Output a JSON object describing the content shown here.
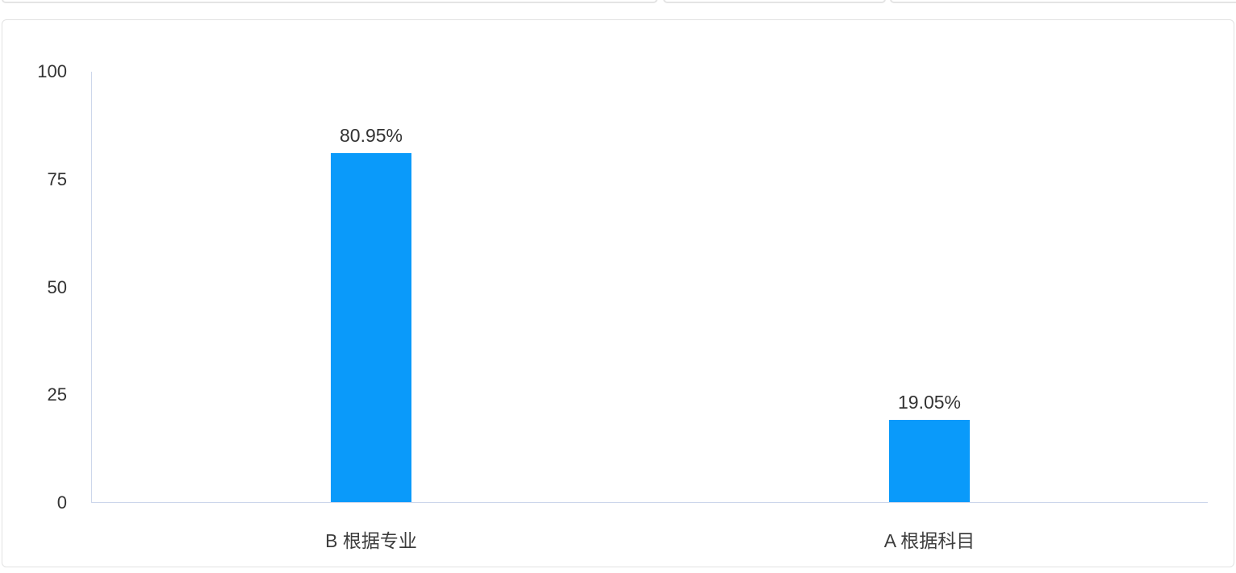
{
  "page": {
    "background": "#ffffff"
  },
  "chart_data": {
    "type": "bar",
    "title": "",
    "xlabel": "",
    "ylabel": "",
    "categories": [
      "B 根据专业",
      "A 根据科目"
    ],
    "values": [
      80.95,
      19.05
    ],
    "data_labels": [
      "80.95%",
      "19.05%"
    ],
    "yticks": [
      100,
      75,
      50,
      25,
      0
    ],
    "ylim": [
      0,
      100
    ],
    "grid": false,
    "legend_position": "none",
    "bar_color": "#0a9afa",
    "axis_color": "#ccd6eb",
    "tick_label_color": "#333333",
    "data_label_color": "#333333",
    "category_label_color": "#3d3d3d"
  }
}
